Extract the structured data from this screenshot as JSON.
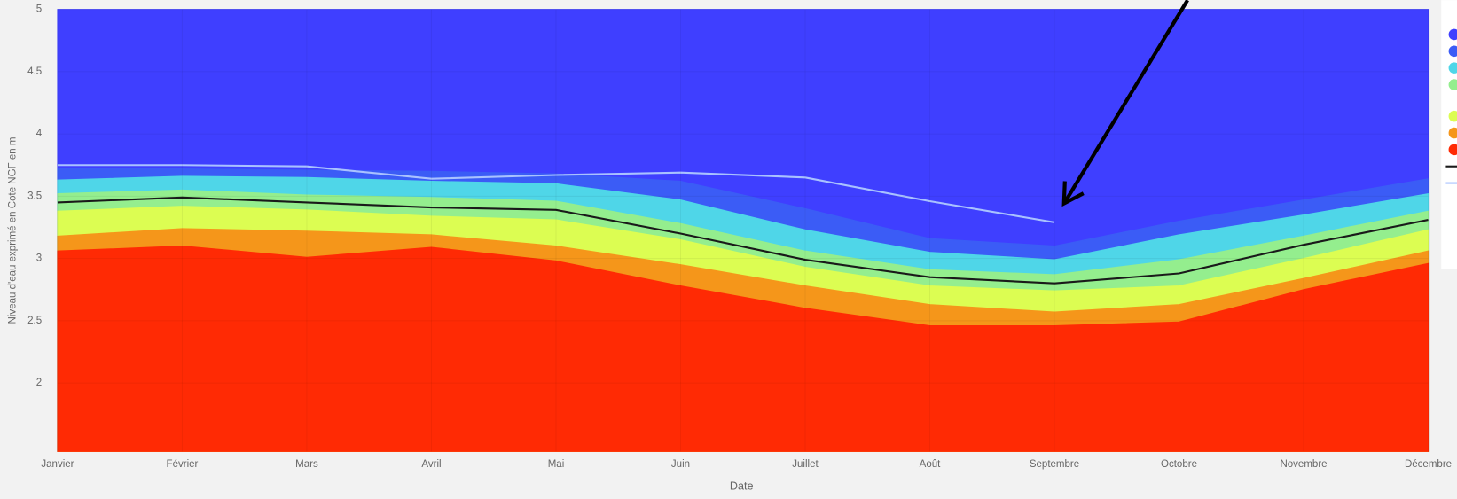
{
  "chart_data": {
    "type": "area",
    "x_label": "Date",
    "y_label": "Niveau d'eau exprimé en Cote NGF en m",
    "categories": [
      "Janvier",
      "Février",
      "Mars",
      "Avril",
      "Mai",
      "Juin",
      "Juillet",
      "Août",
      "Septembre",
      "Octobre",
      "Novembre",
      "Décembre"
    ],
    "ylim": [
      1.45,
      5
    ],
    "yticks": [
      2,
      2.5,
      3,
      3.5,
      4,
      4.5,
      5
    ],
    "grid": true,
    "series": [
      {
        "type": "area",
        "color": "#3f3fff",
        "values": [
          5,
          5,
          5,
          5,
          5,
          5,
          5,
          5,
          5,
          5,
          5,
          5
        ]
      },
      {
        "type": "area",
        "color": "#3b5cf6",
        "values": [
          3.72,
          3.72,
          3.71,
          3.7,
          3.68,
          3.62,
          3.4,
          3.16,
          3.1,
          3.3,
          3.47,
          3.64
        ]
      },
      {
        "type": "area",
        "color": "#4fd6e8",
        "values": [
          3.63,
          3.66,
          3.65,
          3.62,
          3.6,
          3.47,
          3.23,
          3.05,
          2.99,
          3.19,
          3.35,
          3.52
        ]
      },
      {
        "type": "area",
        "color": "#94ee8e",
        "values": [
          3.52,
          3.55,
          3.51,
          3.49,
          3.46,
          3.28,
          3.06,
          2.91,
          2.87,
          2.99,
          3.18,
          3.38
        ]
      },
      {
        "type": "area",
        "color": "#dcfd52",
        "values": [
          3.38,
          3.42,
          3.39,
          3.34,
          3.31,
          3.15,
          2.93,
          2.78,
          2.74,
          2.78,
          3.0,
          3.23
        ]
      },
      {
        "type": "area",
        "color": "#f5961a",
        "values": [
          3.18,
          3.24,
          3.22,
          3.19,
          3.1,
          2.95,
          2.78,
          2.63,
          2.57,
          2.63,
          2.84,
          3.06
        ]
      },
      {
        "type": "area",
        "color": "#ff2a04",
        "values": [
          3.06,
          3.1,
          3.01,
          3.09,
          2.98,
          2.78,
          2.6,
          2.46,
          2.46,
          2.49,
          2.75,
          2.96
        ]
      },
      {
        "type": "line",
        "color": "#1a1a1a",
        "values": [
          3.45,
          3.49,
          3.45,
          3.41,
          3.39,
          3.2,
          2.99,
          2.85,
          2.8,
          2.88,
          3.11,
          3.31
        ]
      },
      {
        "type": "line",
        "color": "#a9c2ff",
        "values": [
          3.75,
          3.75,
          3.74,
          3.64,
          3.67,
          3.69,
          3.65,
          3.46,
          3.29,
          null,
          null,
          null
        ]
      }
    ]
  }
}
